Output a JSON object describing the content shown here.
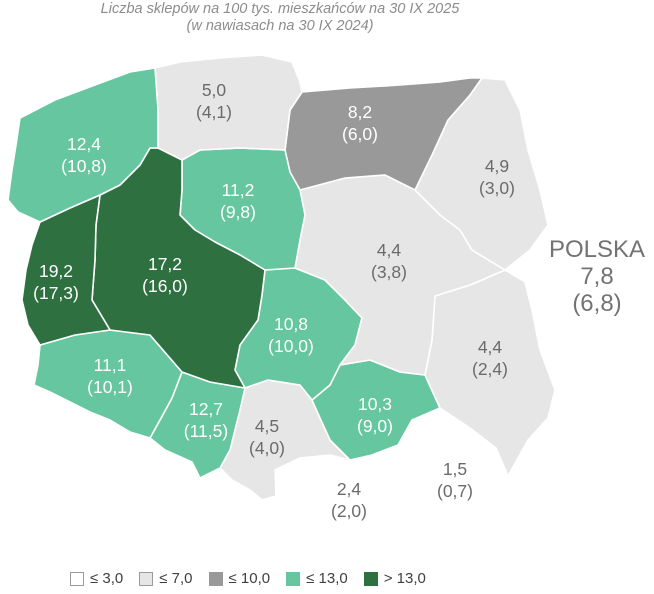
{
  "title": {
    "line1": "Liczba sklepów na 100 tys. mieszkańców na 30 IX 2025",
    "line2": "(w nawiasach na 30 IX 2024)"
  },
  "colors": {
    "class1": "#ffffff",
    "class2": "#e6e6e6",
    "class3": "#999999",
    "class4": "#66c6a0",
    "class5": "#2e7040",
    "swatch_border": "#9a9a9a"
  },
  "regions": [
    {
      "id": "zachodniopomorskie",
      "value": "12,4",
      "prev": "(10,8)",
      "class": 4
    },
    {
      "id": "pomorskie",
      "value": "5,0",
      "prev": "(4,1)",
      "class": 2
    },
    {
      "id": "warminsko-mazurskie",
      "value": "8,2",
      "prev": "(6,0)",
      "class": 3
    },
    {
      "id": "podlaskie",
      "value": "4,9",
      "prev": "(3,0)",
      "class": 2
    },
    {
      "id": "kujawsko-pomorskie",
      "value": "11,2",
      "prev": "(9,8)",
      "class": 4
    },
    {
      "id": "lubuskie",
      "value": "19,2",
      "prev": "(17,3)",
      "class": 5
    },
    {
      "id": "wielkopolskie",
      "value": "17,2",
      "prev": "(16,0)",
      "class": 5
    },
    {
      "id": "mazowieckie",
      "value": "4,4",
      "prev": "(3,8)",
      "class": 2
    },
    {
      "id": "lodzkie",
      "value": "10,8",
      "prev": "(10,0)",
      "class": 4
    },
    {
      "id": "lubelskie",
      "value": "4,4",
      "prev": "(2,4)",
      "class": 2
    },
    {
      "id": "dolnoslaskie",
      "value": "11,1",
      "prev": "(10,1)",
      "class": 4
    },
    {
      "id": "opolskie",
      "value": "12,7",
      "prev": "(11,5)",
      "class": 4
    },
    {
      "id": "slaskie",
      "value": "4,5",
      "prev": "(4,0)",
      "class": 2
    },
    {
      "id": "swietokrzyskie",
      "value": "10,3",
      "prev": "(9,0)",
      "class": 4
    },
    {
      "id": "malopolskie",
      "value": "2,4",
      "prev": "(2,0)",
      "class": 1
    },
    {
      "id": "podkarpackie",
      "value": "1,5",
      "prev": "(0,7)",
      "class": 1
    }
  ],
  "national": {
    "name": "POLSKA",
    "value": "7,8",
    "prev": "(6,8)"
  },
  "legend": [
    {
      "label": "≤ 3,0",
      "class": 1
    },
    {
      "label": "≤ 7,0",
      "class": 2
    },
    {
      "label": "≤ 10,0",
      "class": 3
    },
    {
      "label": "≤ 13,0",
      "class": 4
    },
    {
      "label": "> 13,0",
      "class": 5
    }
  ]
}
